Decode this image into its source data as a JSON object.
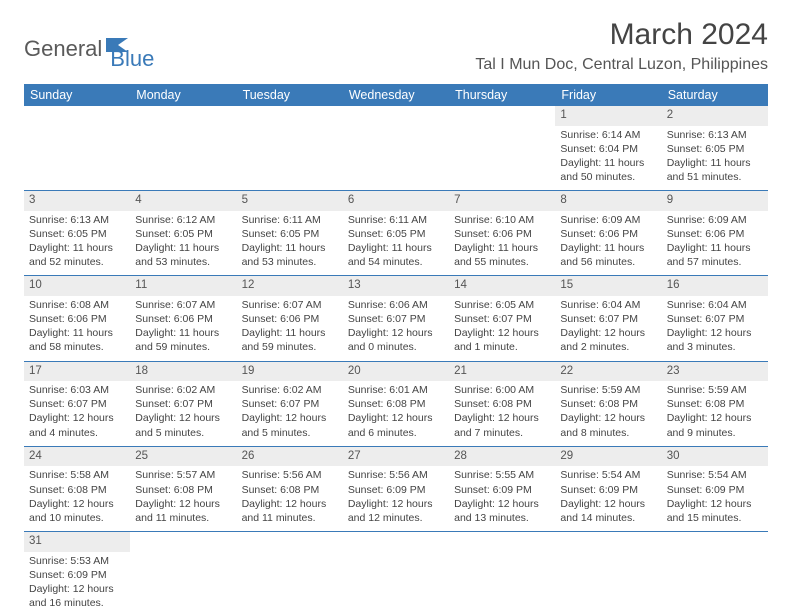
{
  "logo": {
    "part1": "General",
    "part2": "Blue"
  },
  "title": "March 2024",
  "location": "Tal I Mun Doc, Central Luzon, Philippines",
  "header_bg": "#3a7ab8",
  "header_fg": "#ffffff",
  "daynum_bg": "#ededed",
  "border_color": "#3a7ab8",
  "days": [
    "Sunday",
    "Monday",
    "Tuesday",
    "Wednesday",
    "Thursday",
    "Friday",
    "Saturday"
  ],
  "weeks": [
    [
      null,
      null,
      null,
      null,
      null,
      {
        "n": "1",
        "sr": "Sunrise: 6:14 AM",
        "ss": "Sunset: 6:04 PM",
        "dl1": "Daylight: 11 hours",
        "dl2": "and 50 minutes."
      },
      {
        "n": "2",
        "sr": "Sunrise: 6:13 AM",
        "ss": "Sunset: 6:05 PM",
        "dl1": "Daylight: 11 hours",
        "dl2": "and 51 minutes."
      }
    ],
    [
      {
        "n": "3",
        "sr": "Sunrise: 6:13 AM",
        "ss": "Sunset: 6:05 PM",
        "dl1": "Daylight: 11 hours",
        "dl2": "and 52 minutes."
      },
      {
        "n": "4",
        "sr": "Sunrise: 6:12 AM",
        "ss": "Sunset: 6:05 PM",
        "dl1": "Daylight: 11 hours",
        "dl2": "and 53 minutes."
      },
      {
        "n": "5",
        "sr": "Sunrise: 6:11 AM",
        "ss": "Sunset: 6:05 PM",
        "dl1": "Daylight: 11 hours",
        "dl2": "and 53 minutes."
      },
      {
        "n": "6",
        "sr": "Sunrise: 6:11 AM",
        "ss": "Sunset: 6:05 PM",
        "dl1": "Daylight: 11 hours",
        "dl2": "and 54 minutes."
      },
      {
        "n": "7",
        "sr": "Sunrise: 6:10 AM",
        "ss": "Sunset: 6:06 PM",
        "dl1": "Daylight: 11 hours",
        "dl2": "and 55 minutes."
      },
      {
        "n": "8",
        "sr": "Sunrise: 6:09 AM",
        "ss": "Sunset: 6:06 PM",
        "dl1": "Daylight: 11 hours",
        "dl2": "and 56 minutes."
      },
      {
        "n": "9",
        "sr": "Sunrise: 6:09 AM",
        "ss": "Sunset: 6:06 PM",
        "dl1": "Daylight: 11 hours",
        "dl2": "and 57 minutes."
      }
    ],
    [
      {
        "n": "10",
        "sr": "Sunrise: 6:08 AM",
        "ss": "Sunset: 6:06 PM",
        "dl1": "Daylight: 11 hours",
        "dl2": "and 58 minutes."
      },
      {
        "n": "11",
        "sr": "Sunrise: 6:07 AM",
        "ss": "Sunset: 6:06 PM",
        "dl1": "Daylight: 11 hours",
        "dl2": "and 59 minutes."
      },
      {
        "n": "12",
        "sr": "Sunrise: 6:07 AM",
        "ss": "Sunset: 6:06 PM",
        "dl1": "Daylight: 11 hours",
        "dl2": "and 59 minutes."
      },
      {
        "n": "13",
        "sr": "Sunrise: 6:06 AM",
        "ss": "Sunset: 6:07 PM",
        "dl1": "Daylight: 12 hours",
        "dl2": "and 0 minutes."
      },
      {
        "n": "14",
        "sr": "Sunrise: 6:05 AM",
        "ss": "Sunset: 6:07 PM",
        "dl1": "Daylight: 12 hours",
        "dl2": "and 1 minute."
      },
      {
        "n": "15",
        "sr": "Sunrise: 6:04 AM",
        "ss": "Sunset: 6:07 PM",
        "dl1": "Daylight: 12 hours",
        "dl2": "and 2 minutes."
      },
      {
        "n": "16",
        "sr": "Sunrise: 6:04 AM",
        "ss": "Sunset: 6:07 PM",
        "dl1": "Daylight: 12 hours",
        "dl2": "and 3 minutes."
      }
    ],
    [
      {
        "n": "17",
        "sr": "Sunrise: 6:03 AM",
        "ss": "Sunset: 6:07 PM",
        "dl1": "Daylight: 12 hours",
        "dl2": "and 4 minutes."
      },
      {
        "n": "18",
        "sr": "Sunrise: 6:02 AM",
        "ss": "Sunset: 6:07 PM",
        "dl1": "Daylight: 12 hours",
        "dl2": "and 5 minutes."
      },
      {
        "n": "19",
        "sr": "Sunrise: 6:02 AM",
        "ss": "Sunset: 6:07 PM",
        "dl1": "Daylight: 12 hours",
        "dl2": "and 5 minutes."
      },
      {
        "n": "20",
        "sr": "Sunrise: 6:01 AM",
        "ss": "Sunset: 6:08 PM",
        "dl1": "Daylight: 12 hours",
        "dl2": "and 6 minutes."
      },
      {
        "n": "21",
        "sr": "Sunrise: 6:00 AM",
        "ss": "Sunset: 6:08 PM",
        "dl1": "Daylight: 12 hours",
        "dl2": "and 7 minutes."
      },
      {
        "n": "22",
        "sr": "Sunrise: 5:59 AM",
        "ss": "Sunset: 6:08 PM",
        "dl1": "Daylight: 12 hours",
        "dl2": "and 8 minutes."
      },
      {
        "n": "23",
        "sr": "Sunrise: 5:59 AM",
        "ss": "Sunset: 6:08 PM",
        "dl1": "Daylight: 12 hours",
        "dl2": "and 9 minutes."
      }
    ],
    [
      {
        "n": "24",
        "sr": "Sunrise: 5:58 AM",
        "ss": "Sunset: 6:08 PM",
        "dl1": "Daylight: 12 hours",
        "dl2": "and 10 minutes."
      },
      {
        "n": "25",
        "sr": "Sunrise: 5:57 AM",
        "ss": "Sunset: 6:08 PM",
        "dl1": "Daylight: 12 hours",
        "dl2": "and 11 minutes."
      },
      {
        "n": "26",
        "sr": "Sunrise: 5:56 AM",
        "ss": "Sunset: 6:08 PM",
        "dl1": "Daylight: 12 hours",
        "dl2": "and 11 minutes."
      },
      {
        "n": "27",
        "sr": "Sunrise: 5:56 AM",
        "ss": "Sunset: 6:09 PM",
        "dl1": "Daylight: 12 hours",
        "dl2": "and 12 minutes."
      },
      {
        "n": "28",
        "sr": "Sunrise: 5:55 AM",
        "ss": "Sunset: 6:09 PM",
        "dl1": "Daylight: 12 hours",
        "dl2": "and 13 minutes."
      },
      {
        "n": "29",
        "sr": "Sunrise: 5:54 AM",
        "ss": "Sunset: 6:09 PM",
        "dl1": "Daylight: 12 hours",
        "dl2": "and 14 minutes."
      },
      {
        "n": "30",
        "sr": "Sunrise: 5:54 AM",
        "ss": "Sunset: 6:09 PM",
        "dl1": "Daylight: 12 hours",
        "dl2": "and 15 minutes."
      }
    ],
    [
      {
        "n": "31",
        "sr": "Sunrise: 5:53 AM",
        "ss": "Sunset: 6:09 PM",
        "dl1": "Daylight: 12 hours",
        "dl2": "and 16 minutes."
      },
      null,
      null,
      null,
      null,
      null,
      null
    ]
  ]
}
